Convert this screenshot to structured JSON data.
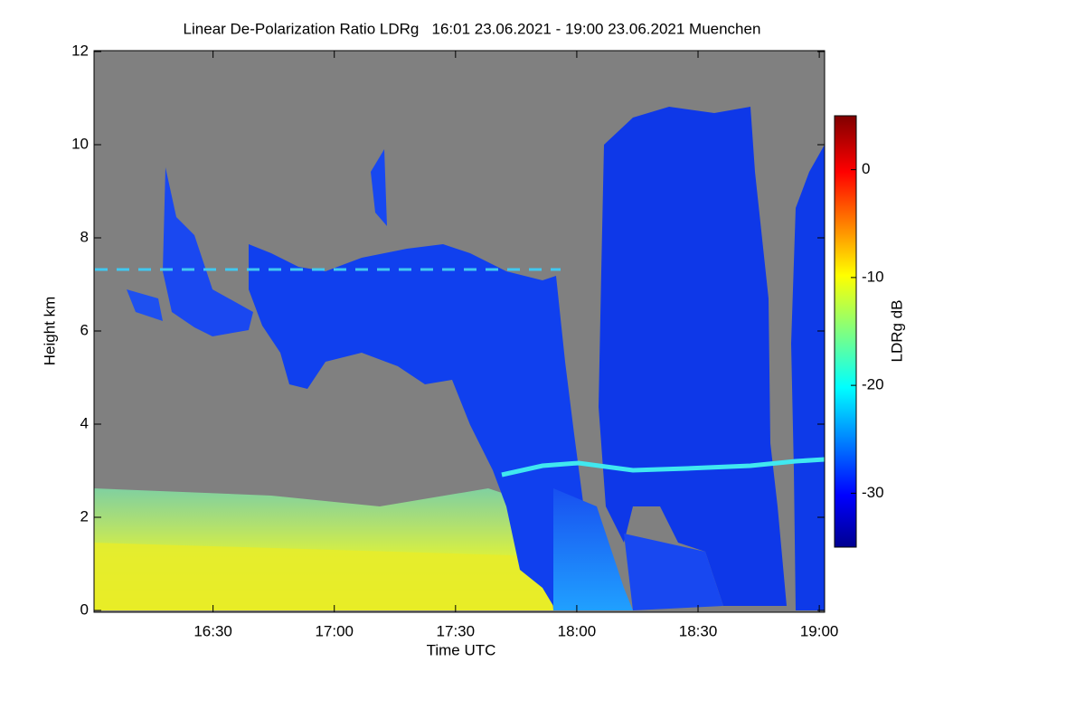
{
  "chart_data": {
    "type": "heatmap",
    "title": "Linear De-Polarization Ratio LDRg   16:01 23.06.2021 - 19:00 23.06.2021 Muenchen",
    "x_label": "Time UTC",
    "y_label": "Height km",
    "colorbar_label": "LDRg dB",
    "xlim": [
      16.0167,
      19.0
    ],
    "xticks": [
      {
        "value": 16.5,
        "label": "16:30"
      },
      {
        "value": 17,
        "label": "17:00"
      },
      {
        "value": 17.5,
        "label": "17:30"
      },
      {
        "value": 18,
        "label": "18:00"
      },
      {
        "value": 18.5,
        "label": "18:30"
      },
      {
        "value": 19,
        "label": "19:00"
      }
    ],
    "ylim": [
      0,
      12
    ],
    "yticks": [
      0,
      2,
      4,
      6,
      8,
      10,
      12
    ],
    "clim": [
      -35,
      5
    ],
    "cticks": [
      0,
      -10,
      -20,
      -30
    ]
  }
}
